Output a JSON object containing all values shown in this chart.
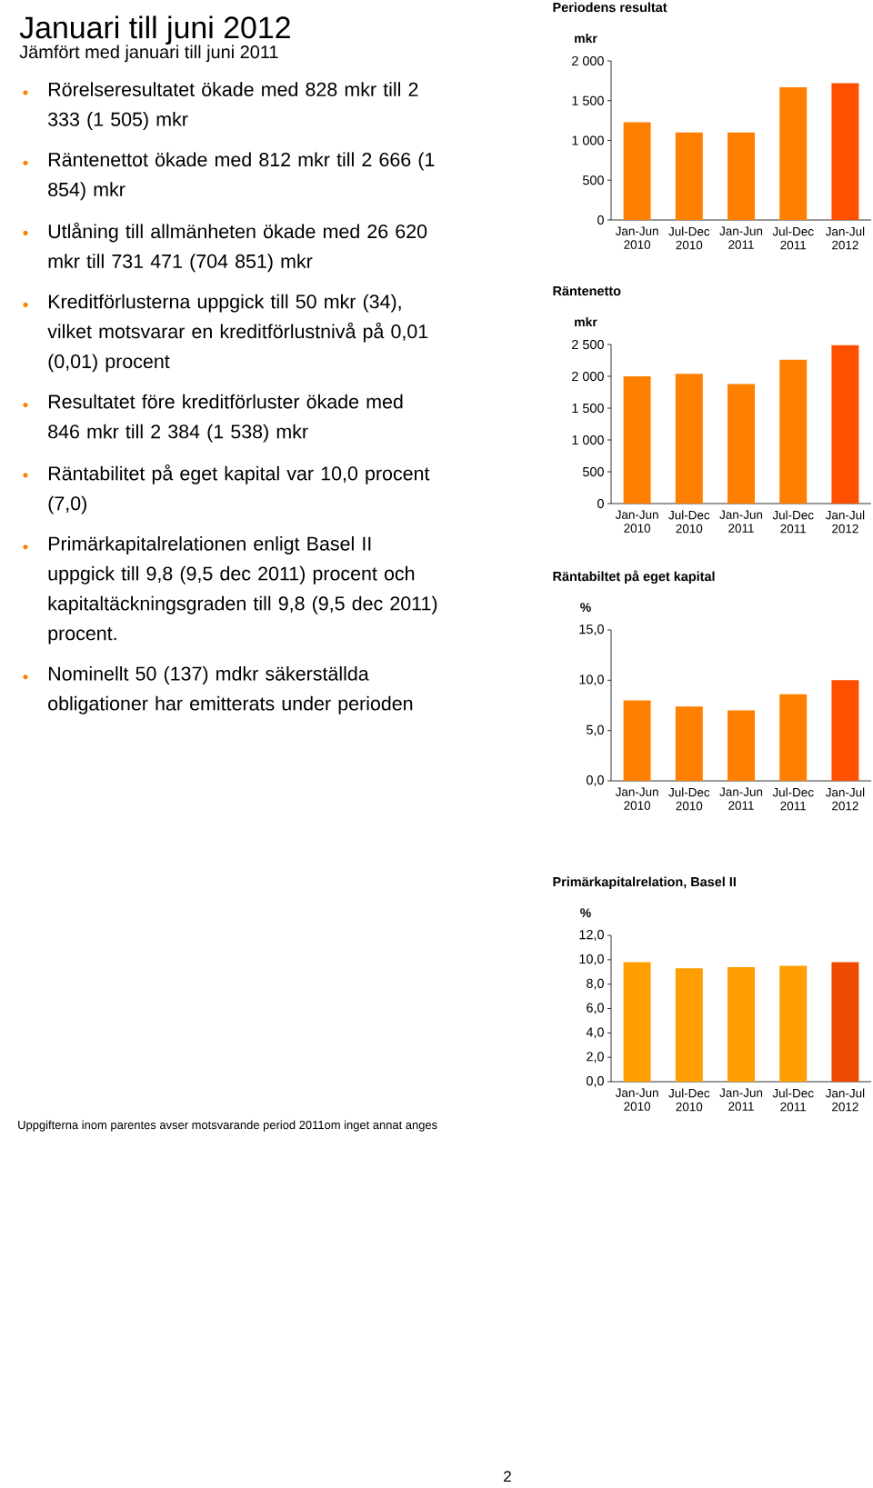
{
  "chart_data": [
    {
      "type": "other",
      "title": "Januari till juni 2012",
      "subtitle": "Jämfört med januari till juni 2011",
      "annotations": [
        "Rörelseresultatet ökade med 828 mkr till 2 333 (1 505) mkr",
        "Räntenettot ökade med 812 mkr till 2 666 (1 854) mkr",
        "Utlåning till allmänheten ökade med 26 620 mkr till 731 471 (704 851) mkr",
        "Kreditförlusterna uppgick till 50 mkr (34), vilket motsvarar en kreditförlustnivå på 0,01 (0,01) procent",
        "Resultatet före kreditförluster ökade med 846 mkr till 2 384 (1 538) mkr",
        "Räntabilitet på eget kapital var 10,0 procent (7,0)",
        "Primärkapitalrelationen enligt Basel II uppgick till 9,8 (9,5 dec 2011) procent och kapitaltäckningsgraden till 9,8 (9,5 dec 2011) procent.",
        "Nominellt 50 (137) mdkr säkerställda obligationer har emitterats under perioden",
        "Uppgifterna inom parentes avser motsvarande period 2011om inget annat anges",
        "2"
      ]
    },
    {
      "type": "bar",
      "title": "Periodens resultat",
      "ylabel": "mkr",
      "categories": [
        "Jan-Jun 2010",
        "Jul-Dec 2010",
        "Jan-Jun 2011",
        "Jul-Dec 2011",
        "Jan-Jul 2012"
      ],
      "values": [
        1230,
        1100,
        1100,
        1670,
        1720
      ],
      "colors": [
        "#ff8000",
        "#ff8000",
        "#ff8000",
        "#ff8000",
        "#ff5000"
      ],
      "ylim": [
        0,
        2000
      ],
      "yticks": [
        0,
        500,
        {
          "value": 1000,
          "label": "1 000"
        },
        {
          "value": 1500,
          "label": "1 500"
        },
        {
          "value": 2000,
          "label": "2 000"
        }
      ]
    },
    {
      "type": "bar",
      "title": "Räntenetto",
      "ylabel": "mkr",
      "categories": [
        "Jan-Jun 2010",
        "Jul-Dec 2010",
        "Jan-Jun 2011",
        "Jul-Dec 2011",
        "Jan-Jul 2012"
      ],
      "values": [
        2000,
        2040,
        1880,
        2260,
        2490
      ],
      "colors": [
        "#ff8000",
        "#ff8000",
        "#ff8000",
        "#ff8000",
        "#ff5000"
      ],
      "ylim": [
        0,
        2500
      ],
      "yticks": [
        0,
        500,
        {
          "value": 1000,
          "label": "1 000"
        },
        {
          "value": 1500,
          "label": "1 500"
        },
        {
          "value": 2000,
          "label": "2 000"
        },
        {
          "value": 2500,
          "label": "2 500"
        }
      ]
    },
    {
      "type": "bar",
      "title": "Räntabiltet på eget kapital",
      "ylabel": "%",
      "categories": [
        "Jan-Jun 2010",
        "Jul-Dec 2010",
        "Jan-Jun 2011",
        "Jul-Dec 2011",
        "Jan-Jul 2012"
      ],
      "values": [
        8.0,
        7.4,
        7.0,
        8.6,
        10.0
      ],
      "colors": [
        "#ff8000",
        "#ff8000",
        "#ff8000",
        "#ff8000",
        "#ff5000"
      ],
      "ylim": [
        0,
        15
      ],
      "yticks": [
        {
          "value": 0,
          "label": "0,0"
        },
        {
          "value": 5,
          "label": "5,0"
        },
        {
          "value": 10,
          "label": "10,0"
        },
        {
          "value": 15,
          "label": "15,0"
        }
      ]
    },
    {
      "type": "bar",
      "title": "Primärkapitalrelation, Basel II",
      "ylabel": "%",
      "categories": [
        "Jan-Jun 2010",
        "Jul-Dec 2010",
        "Jan-Jun 2011",
        "Jul-Dec 2011",
        "Jan-Jul 2012"
      ],
      "values": [
        9.8,
        9.3,
        9.4,
        9.5,
        9.8
      ],
      "colors": [
        "#ff9e00",
        "#ff9e00",
        "#ff9e00",
        "#ff9e00",
        "#ee4a00"
      ],
      "ylim": [
        0,
        12
      ],
      "yticks": [
        {
          "value": 0,
          "label": "0,0"
        },
        {
          "value": 2,
          "label": "2,0"
        },
        {
          "value": 4,
          "label": "4,0"
        },
        {
          "value": 6,
          "label": "6,0"
        },
        {
          "value": 8,
          "label": "8,0"
        },
        {
          "value": 10,
          "label": "10,0"
        },
        {
          "value": 12,
          "label": "12,0"
        }
      ]
    }
  ]
}
